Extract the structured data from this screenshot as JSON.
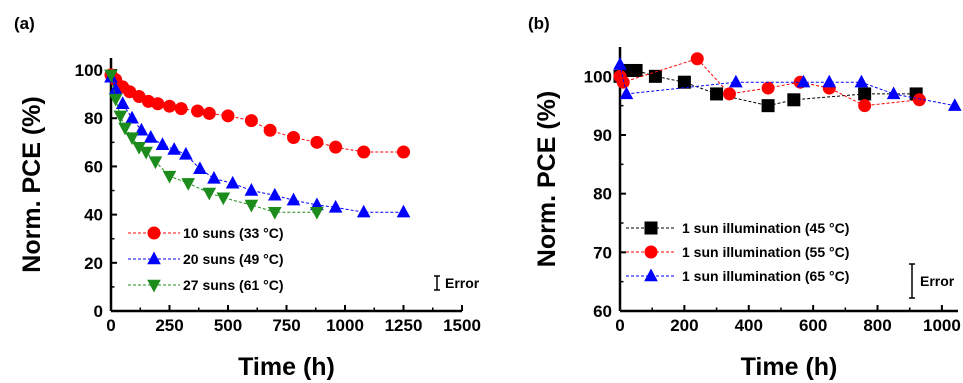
{
  "chart_data": [
    {
      "type": "line",
      "panel_label": "(a)",
      "xlabel": "Time (h)",
      "ylabel": "Norm. PCE (%)",
      "xlim": [
        0,
        1500
      ],
      "ylim": [
        0,
        105
      ],
      "xticks": [
        0,
        250,
        500,
        750,
        1000,
        1250,
        1500
      ],
      "yticks": [
        0,
        20,
        40,
        60,
        80,
        100
      ],
      "grid": false,
      "legend_position": "bottom-left",
      "error_label": "Error",
      "series": [
        {
          "name": "10 suns (33 °C)",
          "color": "#ff0000",
          "marker": "circle",
          "x": [
            0,
            20,
            50,
            80,
            120,
            160,
            200,
            250,
            300,
            370,
            420,
            500,
            600,
            680,
            780,
            880,
            960,
            1080,
            1250
          ],
          "y": [
            98,
            96,
            93,
            91,
            89,
            87,
            86,
            85,
            84,
            83,
            82,
            81,
            79,
            75,
            72,
            70,
            68,
            66,
            66
          ]
        },
        {
          "name": "20 suns (49 °C)",
          "color": "#0000ff",
          "marker": "triangle-up",
          "x": [
            0,
            20,
            50,
            90,
            130,
            170,
            220,
            270,
            320,
            380,
            440,
            520,
            600,
            700,
            780,
            880,
            960,
            1080,
            1250
          ],
          "y": [
            97,
            92,
            86,
            80,
            75,
            72,
            69,
            67,
            65,
            59,
            55,
            53,
            50,
            48,
            46,
            44,
            43,
            41,
            41
          ]
        },
        {
          "name": "27 suns (61 °C)",
          "color": "#1c8c1c",
          "marker": "triangle-down",
          "x": [
            0,
            20,
            40,
            60,
            90,
            120,
            150,
            190,
            250,
            330,
            420,
            480,
            600,
            700,
            880
          ],
          "y": [
            98,
            88,
            81,
            76,
            72,
            68,
            66,
            62,
            56,
            53,
            49,
            47,
            44,
            41,
            41
          ]
        }
      ]
    },
    {
      "type": "line",
      "panel_label": "(b)",
      "xlabel": "Time (h)",
      "ylabel": "Norm. PCE (%)",
      "xlim": [
        0,
        1050
      ],
      "ylim": [
        60,
        105
      ],
      "xticks": [
        0,
        200,
        400,
        600,
        800,
        1000
      ],
      "yticks": [
        60,
        70,
        80,
        90,
        100
      ],
      "grid": false,
      "legend_position": "bottom-left",
      "error_label": "Error",
      "series": [
        {
          "name": "1 sun illumination (45 °C)",
          "color": "#000000",
          "marker": "square",
          "x": [
            0,
            20,
            50,
            110,
            200,
            300,
            460,
            540,
            760,
            920
          ],
          "y": [
            100,
            101,
            101,
            100,
            99,
            97,
            95,
            96,
            97,
            97
          ]
        },
        {
          "name": "1 sun illumination (55 °C)",
          "color": "#ff0000",
          "marker": "circle",
          "x": [
            0,
            10,
            240,
            340,
            460,
            560,
            650,
            760,
            930
          ],
          "y": [
            100,
            99,
            103,
            97,
            98,
            99,
            98,
            95,
            96
          ]
        },
        {
          "name": "1 sun illumination (65 °C)",
          "color": "#0000ff",
          "marker": "triangle-up",
          "x": [
            0,
            20,
            360,
            570,
            650,
            750,
            850,
            1040
          ],
          "y": [
            102,
            97,
            99,
            99,
            99,
            99,
            97,
            95
          ]
        }
      ]
    }
  ]
}
